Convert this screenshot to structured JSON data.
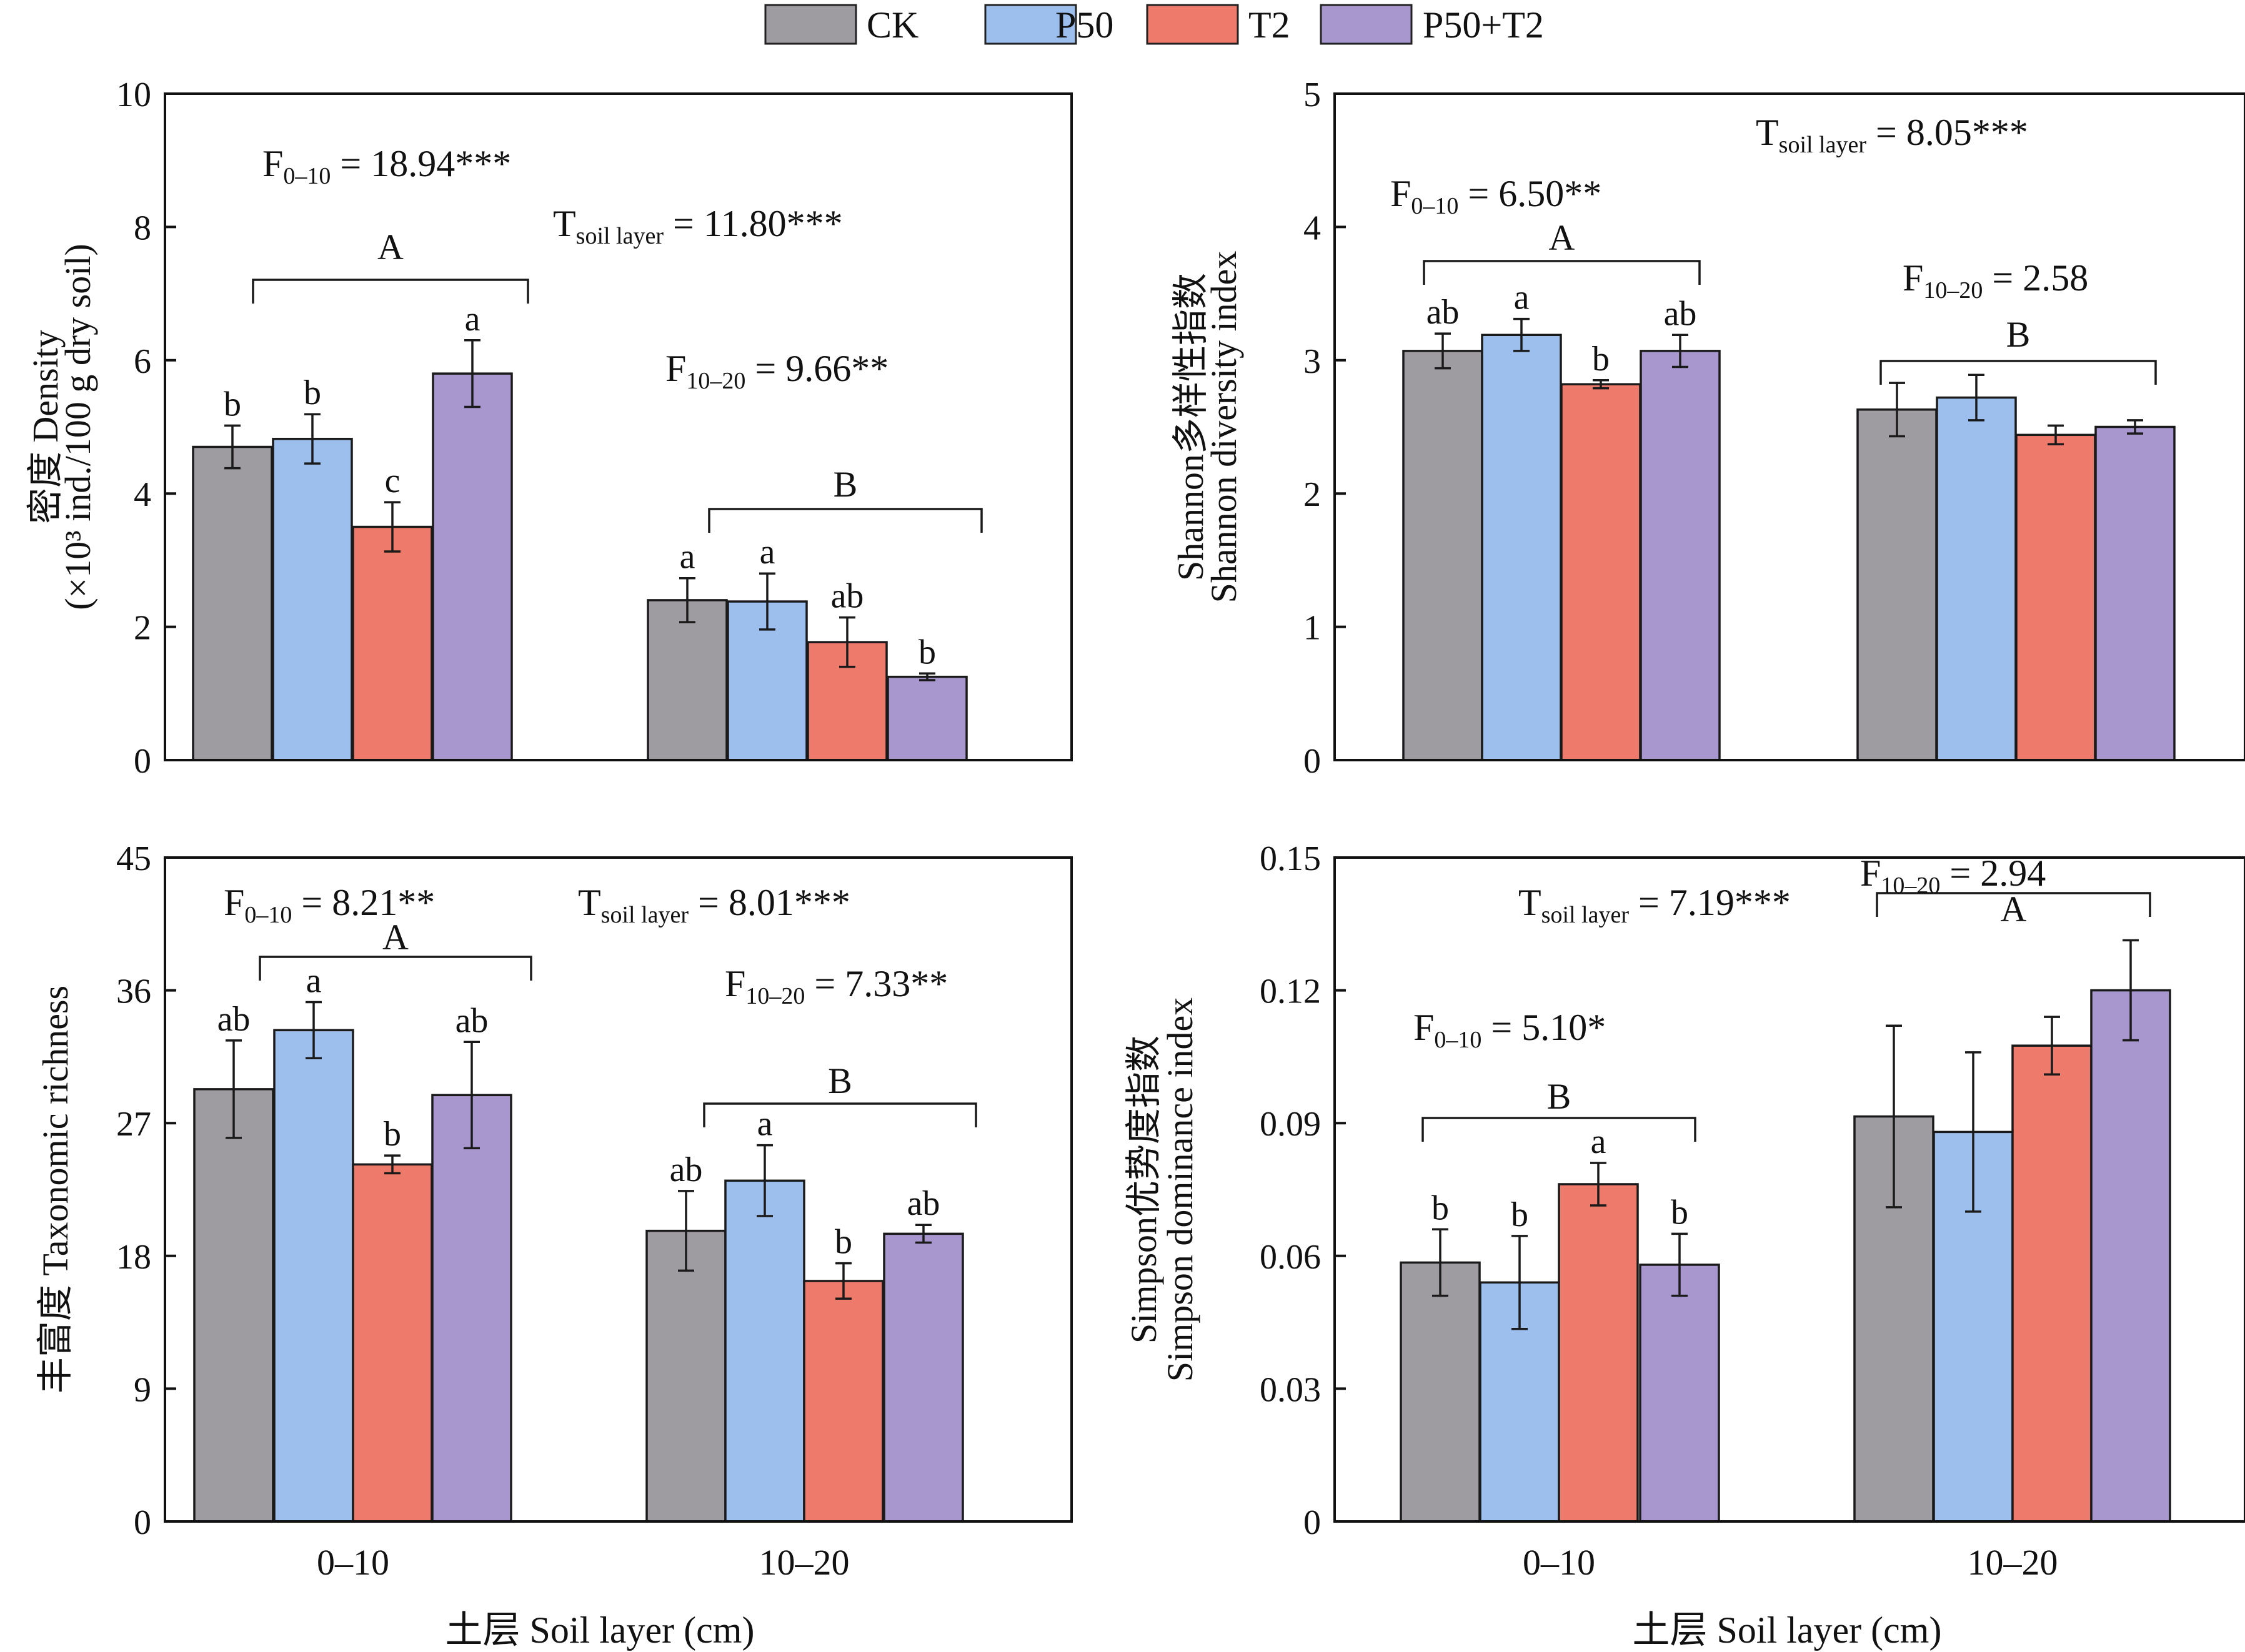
{
  "legend": [
    {
      "label": "CK",
      "color": "#9e9ba1"
    },
    {
      "label": "P50",
      "color": "#9dbfee"
    },
    {
      "label": "T2",
      "color": "#ee7a6b"
    },
    {
      "label": "P50+T2",
      "color": "#a897cf"
    }
  ],
  "x_axis_label": "土层 Soil layer (cm)",
  "chart_data": [
    {
      "type": "bar",
      "categories": [
        "0–10",
        "10–20"
      ],
      "ylabel_line1": "密度 Density",
      "ylabel_line2": "(×10³ ind./100 g dry soil)",
      "ylim": [
        0,
        10
      ],
      "yticks": [
        "0",
        "2",
        "4",
        "6",
        "8",
        "10"
      ],
      "series": [
        {
          "name": "CK",
          "values": [
            4.7,
            2.4
          ],
          "errors": [
            0.32,
            0.33
          ],
          "letters": [
            "b",
            "a"
          ]
        },
        {
          "name": "P50",
          "values": [
            4.82,
            2.38
          ],
          "errors": [
            0.37,
            0.42
          ],
          "letters": [
            "b",
            "a"
          ]
        },
        {
          "name": "T2",
          "values": [
            3.5,
            1.77
          ],
          "errors": [
            0.37,
            0.37
          ],
          "letters": [
            "c",
            "ab"
          ]
        },
        {
          "name": "P50+T2",
          "values": [
            5.8,
            1.25
          ],
          "errors": [
            0.5,
            0.05
          ],
          "letters": [
            "a",
            "b"
          ]
        }
      ],
      "group_letters": [
        "A",
        "B"
      ],
      "annotations": [
        {
          "id": "f1",
          "main": "F",
          "sub": "0–10",
          "rest": "= 18.94***"
        },
        {
          "id": "t",
          "main": "T",
          "sub": "soil layer",
          "rest": "= 11.80***"
        },
        {
          "id": "f2",
          "main": "F",
          "sub": "10–20",
          "rest": "= 9.66**"
        }
      ]
    },
    {
      "type": "bar",
      "categories": [
        "0–10",
        "10–20"
      ],
      "ylabel_line1": "Shannon多样性指数",
      "ylabel_line2": "Shannon diversity index",
      "ylim": [
        0,
        5
      ],
      "yticks": [
        "0",
        "1",
        "2",
        "3",
        "4",
        "5"
      ],
      "series": [
        {
          "name": "CK",
          "values": [
            3.07,
            2.63
          ],
          "errors": [
            0.13,
            0.2
          ],
          "letters": [
            "ab",
            ""
          ]
        },
        {
          "name": "P50",
          "values": [
            3.19,
            2.72
          ],
          "errors": [
            0.12,
            0.17
          ],
          "letters": [
            "a",
            ""
          ]
        },
        {
          "name": "T2",
          "values": [
            2.82,
            2.44
          ],
          "errors": [
            0.03,
            0.07
          ],
          "letters": [
            "b",
            ""
          ]
        },
        {
          "name": "P50+T2",
          "values": [
            3.07,
            2.5
          ],
          "errors": [
            0.12,
            0.05
          ],
          "letters": [
            "ab",
            ""
          ]
        }
      ],
      "group_letters": [
        "A",
        "B"
      ],
      "annotations": [
        {
          "id": "t",
          "main": "T",
          "sub": "soil layer",
          "rest": "= 8.05***"
        },
        {
          "id": "f1",
          "main": "F",
          "sub": "0–10",
          "rest": "= 6.50**"
        },
        {
          "id": "f2",
          "main": "F",
          "sub": "10–20",
          "rest": "= 2.58"
        }
      ]
    },
    {
      "type": "bar",
      "categories": [
        "0–10",
        "10–20"
      ],
      "ylabel_line1": "丰富度 Taxonomic richness",
      "ylabel_line2": "",
      "ylim": [
        0,
        45
      ],
      "yticks": [
        "0",
        "9",
        "18",
        "27",
        "36",
        "45"
      ],
      "series": [
        {
          "name": "CK",
          "values": [
            29.3,
            19.7
          ],
          "errors": [
            3.3,
            2.7
          ],
          "letters": [
            "ab",
            "ab"
          ]
        },
        {
          "name": "P50",
          "values": [
            33.3,
            23.1
          ],
          "errors": [
            1.9,
            2.4
          ],
          "letters": [
            "a",
            "a"
          ]
        },
        {
          "name": "T2",
          "values": [
            24.2,
            16.3
          ],
          "errors": [
            0.6,
            1.2
          ],
          "letters": [
            "b",
            "b"
          ]
        },
        {
          "name": "P50+T2",
          "values": [
            28.9,
            19.5
          ],
          "errors": [
            3.6,
            0.6
          ],
          "letters": [
            "ab",
            "ab"
          ]
        }
      ],
      "group_letters": [
        "A",
        "B"
      ],
      "annotations": [
        {
          "id": "f1",
          "main": "F",
          "sub": "0–10",
          "rest": "= 8.21**"
        },
        {
          "id": "t",
          "main": "T",
          "sub": "soil layer",
          "rest": "= 8.01***"
        },
        {
          "id": "f2",
          "main": "F",
          "sub": "10–20",
          "rest": "= 7.33**"
        }
      ]
    },
    {
      "type": "bar",
      "categories": [
        "0–10",
        "10–20"
      ],
      "ylabel_line1": "Simpson优势度指数",
      "ylabel_line2": "Simpson dominance index",
      "ylim": [
        0,
        0.15
      ],
      "yticks": [
        "0",
        "0.03",
        "0.06",
        "0.09",
        "0.12",
        "0.15"
      ],
      "series": [
        {
          "name": "CK",
          "values": [
            0.0585,
            0.0915
          ],
          "errors": [
            0.0075,
            0.0205
          ],
          "letters": [
            "b",
            ""
          ]
        },
        {
          "name": "P50",
          "values": [
            0.054,
            0.088
          ],
          "errors": [
            0.0105,
            0.018
          ],
          "letters": [
            "b",
            ""
          ]
        },
        {
          "name": "T2",
          "values": [
            0.0762,
            0.1075
          ],
          "errors": [
            0.0048,
            0.0065
          ],
          "letters": [
            "a",
            ""
          ]
        },
        {
          "name": "P50+T2",
          "values": [
            0.058,
            0.12
          ],
          "errors": [
            0.007,
            0.0113
          ],
          "letters": [
            "b",
            ""
          ]
        }
      ],
      "group_letters": [
        "B",
        "A"
      ],
      "annotations": [
        {
          "id": "f2",
          "main": "F",
          "sub": "10–20",
          "rest": "= 2.94"
        },
        {
          "id": "t",
          "main": "T",
          "sub": "soil layer",
          "rest": "= 7.19***"
        },
        {
          "id": "f1",
          "main": "F",
          "sub": "0–10",
          "rest": "= 5.10*"
        }
      ]
    }
  ]
}
